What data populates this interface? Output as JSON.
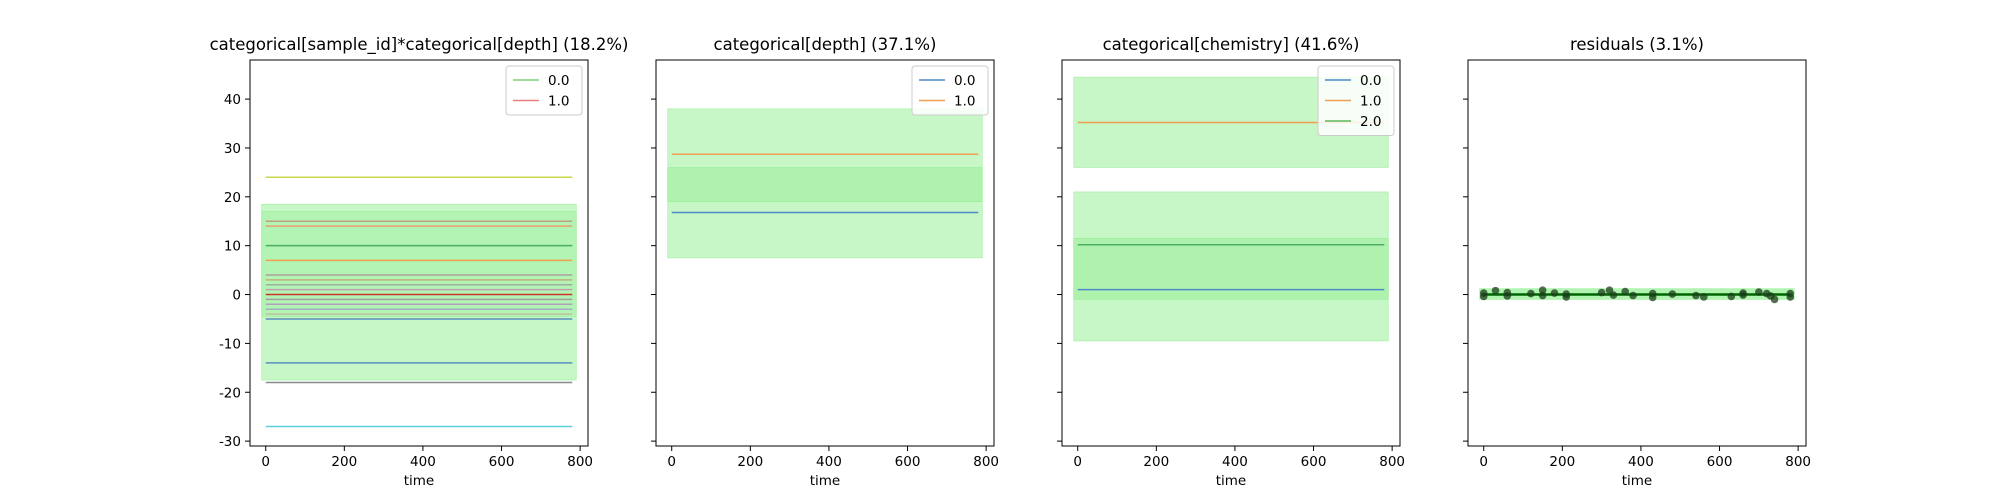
{
  "figure": {
    "shared_y": true,
    "ylim": [
      -31,
      48
    ],
    "y_ticks": [
      -30,
      -20,
      -10,
      0,
      10,
      20,
      30,
      40
    ],
    "x_ticks": [
      0,
      200,
      400,
      600,
      800
    ],
    "xlim": [
      -40,
      820
    ],
    "x_range": [
      0,
      780
    ]
  },
  "chart_data": [
    {
      "type": "line",
      "title": "categorical[sample_id]*categorical[depth] (18.2%)",
      "xlabel": "time",
      "ylabel": "",
      "legend": {
        "placement": "top-right",
        "entries": [
          {
            "label": "0.0",
            "color": "#7fd17f"
          },
          {
            "label": "1.0",
            "color": "#e87e7e"
          }
        ]
      },
      "bands": [
        {
          "y0": -17.5,
          "y1": 18.5,
          "color": "#90ee90",
          "opacity": 0.5
        },
        {
          "y0": -4.5,
          "y1": 17.0,
          "color": "#90ee90",
          "opacity": 0.35
        }
      ],
      "series": [
        {
          "y": 24,
          "color": "#c8d84a"
        },
        {
          "y": 15,
          "color": "#c0a080"
        },
        {
          "y": 14,
          "color": "#e8a070"
        },
        {
          "y": 10,
          "color": "#4cae64"
        },
        {
          "y": 7,
          "color": "#f0a050"
        },
        {
          "y": 4,
          "color": "#b0a0a0"
        },
        {
          "y": 3,
          "color": "#c0b080"
        },
        {
          "y": 2,
          "color": "#a0b0a0"
        },
        {
          "y": 1,
          "color": "#c0a0b0"
        },
        {
          "y": 0,
          "color": "#cc3333"
        },
        {
          "y": -1,
          "color": "#a0a0a0"
        },
        {
          "y": -2,
          "color": "#b0a0c0"
        },
        {
          "y": -3,
          "color": "#a0b0c0"
        },
        {
          "y": -4,
          "color": "#c0c0a0"
        },
        {
          "y": -5,
          "color": "#5a8fc0"
        },
        {
          "y": -14,
          "color": "#5a8fc0"
        },
        {
          "y": -18,
          "color": "#8a8a8a"
        },
        {
          "y": -27,
          "color": "#5ad0d8"
        }
      ],
      "points": []
    },
    {
      "type": "line",
      "title": "categorical[depth] (37.1%)",
      "xlabel": "time",
      "ylabel": "",
      "legend": {
        "placement": "top-right",
        "entries": [
          {
            "label": "0.0",
            "color": "#4c8bc8"
          },
          {
            "label": "1.0",
            "color": "#f0a050"
          }
        ]
      },
      "bands": [
        {
          "y0": 7.5,
          "y1": 38.0,
          "color": "#90ee90",
          "opacity": 0.5
        },
        {
          "y0": 19.0,
          "y1": 26.0,
          "color": "#90ee90",
          "opacity": 0.45
        }
      ],
      "series": [
        {
          "y": 28.7,
          "color": "#f0a050"
        },
        {
          "y": 16.8,
          "color": "#4c8bc8"
        }
      ],
      "points": []
    },
    {
      "type": "line",
      "title": "categorical[chemistry] (41.6%)",
      "xlabel": "time",
      "ylabel": "",
      "legend": {
        "placement": "top-right",
        "entries": [
          {
            "label": "0.0",
            "color": "#4c8bc8"
          },
          {
            "label": "1.0",
            "color": "#f0a050"
          },
          {
            "label": "2.0",
            "color": "#5cb85c"
          }
        ]
      },
      "bands": [
        {
          "y0": 26.0,
          "y1": 44.5,
          "color": "#90ee90",
          "opacity": 0.5
        },
        {
          "y0": -9.5,
          "y1": 21.0,
          "color": "#90ee90",
          "opacity": 0.5
        },
        {
          "y0": -1.0,
          "y1": 11.5,
          "color": "#90ee90",
          "opacity": 0.45
        }
      ],
      "series": [
        {
          "y": 35.2,
          "color": "#f0a050"
        },
        {
          "y": 10.2,
          "color": "#4cae64"
        },
        {
          "y": 1.0,
          "color": "#4c8bc8"
        }
      ],
      "points": []
    },
    {
      "type": "scatter",
      "title": "residuals (3.1%)",
      "xlabel": "time",
      "ylabel": "",
      "legend": null,
      "bands": [
        {
          "y0": -1.0,
          "y1": 1.2,
          "color": "#90ee90",
          "opacity": 0.7
        }
      ],
      "series": [
        {
          "y": 0,
          "color": "#006400",
          "width": 2.5
        }
      ],
      "points": [
        {
          "x": 0,
          "y": 0.3
        },
        {
          "x": 0,
          "y": -0.4
        },
        {
          "x": 30,
          "y": 0.8
        },
        {
          "x": 60,
          "y": 0.4
        },
        {
          "x": 60,
          "y": -0.3
        },
        {
          "x": 120,
          "y": 0.2
        },
        {
          "x": 150,
          "y": 0.9
        },
        {
          "x": 150,
          "y": -0.2
        },
        {
          "x": 180,
          "y": 0.3
        },
        {
          "x": 210,
          "y": -0.5
        },
        {
          "x": 210,
          "y": 0.1
        },
        {
          "x": 300,
          "y": 0.4
        },
        {
          "x": 320,
          "y": 0.9
        },
        {
          "x": 330,
          "y": -0.1
        },
        {
          "x": 360,
          "y": 0.6
        },
        {
          "x": 380,
          "y": -0.2
        },
        {
          "x": 430,
          "y": 0.2
        },
        {
          "x": 430,
          "y": -0.6
        },
        {
          "x": 480,
          "y": 0.1
        },
        {
          "x": 540,
          "y": -0.2
        },
        {
          "x": 560,
          "y": -0.5
        },
        {
          "x": 630,
          "y": -0.4
        },
        {
          "x": 660,
          "y": 0.3
        },
        {
          "x": 660,
          "y": -0.1
        },
        {
          "x": 700,
          "y": 0.5
        },
        {
          "x": 720,
          "y": 0.2
        },
        {
          "x": 730,
          "y": -0.3
        },
        {
          "x": 740,
          "y": -1.0
        },
        {
          "x": 780,
          "y": 0.2
        },
        {
          "x": 780,
          "y": -0.5
        }
      ]
    }
  ]
}
